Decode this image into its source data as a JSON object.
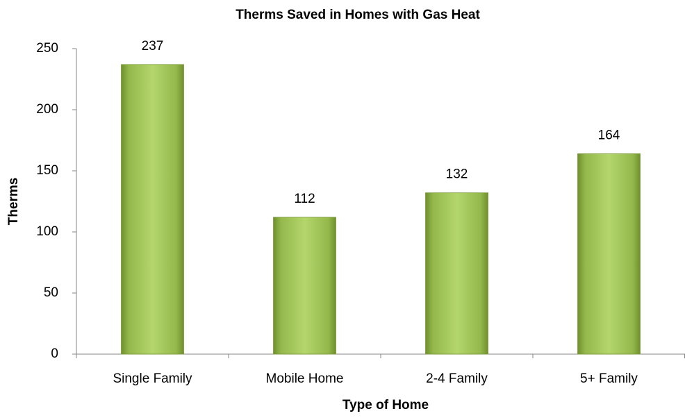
{
  "chart_data": {
    "type": "bar",
    "title": "Therms Saved in Homes with Gas Heat",
    "x_label": "Type of Home",
    "y_label": "Therms",
    "categories": [
      "Single Family",
      "Mobile Home",
      "2-4 Family",
      "5+ Family"
    ],
    "values": [
      237,
      112,
      132,
      164
    ],
    "color": "#9bbb59",
    "ylim": [
      0,
      250
    ],
    "yticks": [
      0,
      50,
      100,
      150,
      200,
      250
    ],
    "grid": false
  }
}
